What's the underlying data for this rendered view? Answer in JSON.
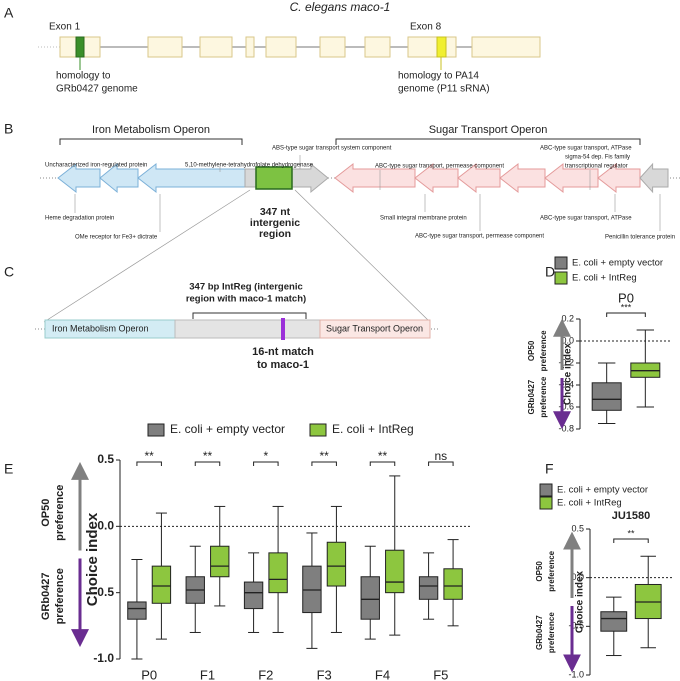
{
  "panel_labels": [
    "A",
    "B",
    "C",
    "D",
    "E",
    "F"
  ],
  "gene": {
    "title": "C. elegans maco-1",
    "exon1": "Exon 1",
    "exon8": "Exon 8",
    "note1": [
      "homology to",
      "GRb0427 genome"
    ],
    "note8": [
      "homology to PA14",
      "genome (P11 sRNA)"
    ]
  },
  "operons": {
    "iron": "Iron Metabolism Operon",
    "sugar": "Sugar Transport Operon",
    "intergenic": [
      "347 nt",
      "intergenic",
      "region"
    ],
    "gene_labels": [
      "Uncharacterized iron-regulated protein",
      "5,10-methylene-tetrahydrofolate dehydrogenase",
      "ABS-type sugar transport system component",
      "ABC-type sugar transport, permease component",
      "ABC-type sugar transport, ATPase",
      "sigma-54 dep. Fis family",
      "transcriptional regulator",
      "Heme degradation protein",
      "OMe receptor for Fe3+ dictrate",
      "Small integral membrane protein",
      "ABC-type sugar transport, permease component",
      "ABC-type sugar transport, ATPase",
      "Penicillin tolerance protein"
    ]
  },
  "intreg": {
    "iron": "Iron Metabolism Operon",
    "sugar": "Sugar Transport Operon",
    "bracket": [
      "347 bp IntReg (intergenic",
      "region with maco-1 match)"
    ],
    "match": [
      "16-nt match",
      "to maco-1"
    ]
  },
  "chart_data": [
    {
      "type": "box",
      "title": "P0",
      "ylabel": "Choice index",
      "up_label": [
        "OP50",
        "preference"
      ],
      "down_label": [
        "GRb0427",
        "preference"
      ],
      "categories": [
        null
      ],
      "ylim": [
        -0.8,
        0.2
      ],
      "yticks": [
        0.2,
        {
          "value": 0,
          "label": "0.0"
        },
        -0.2,
        -0.4,
        -0.6,
        -0.8
      ],
      "significance": [
        "***"
      ],
      "series": [
        {
          "name": "E. coli + empty vector",
          "color": "#7f7f7f",
          "values": [
            {
              "min": -0.75,
              "q1": -0.63,
              "median": -0.53,
              "q3": -0.38,
              "max": -0.2
            }
          ]
        },
        {
          "name": "E. coli + IntReg",
          "color": "#8dc63f",
          "values": [
            {
              "min": -0.6,
              "q1": -0.33,
              "median": -0.27,
              "q3": -0.2,
              "max": 0.1
            }
          ]
        }
      ]
    },
    {
      "type": "box",
      "ylabel": "Choice index",
      "up_label": [
        "OP50",
        "preference"
      ],
      "down_label": [
        "GRb0427",
        "preference"
      ],
      "categories": [
        "P0",
        "F1",
        "F2",
        "F3",
        "F4",
        "F5"
      ],
      "ylim": [
        -1,
        0.5
      ],
      "yticks": [
        0.5,
        {
          "value": 0,
          "label": "0.0"
        },
        -0.5,
        {
          "value": -1,
          "label": "-1.0"
        }
      ],
      "significance": [
        "**",
        "**",
        "*",
        "**",
        "**",
        "ns"
      ],
      "series": [
        {
          "name": "E. coli + empty vector",
          "color": "#7f7f7f",
          "values": [
            {
              "min": -1.0,
              "q1": -0.7,
              "median": -0.62,
              "q3": -0.57,
              "max": -0.25
            },
            {
              "min": -0.8,
              "q1": -0.58,
              "median": -0.48,
              "q3": -0.38,
              "max": -0.15
            },
            {
              "min": -0.8,
              "q1": -0.62,
              "median": -0.5,
              "q3": -0.42,
              "max": -0.2
            },
            {
              "min": -0.92,
              "q1": -0.65,
              "median": -0.48,
              "q3": -0.3,
              "max": -0.05
            },
            {
              "min": -0.85,
              "q1": -0.7,
              "median": -0.55,
              "q3": -0.38,
              "max": -0.15
            },
            {
              "min": -0.7,
              "q1": -0.55,
              "median": -0.45,
              "q3": -0.38,
              "max": -0.2
            }
          ]
        },
        {
          "name": "E. coli + IntReg",
          "color": "#8dc63f",
          "values": [
            {
              "min": -0.85,
              "q1": -0.58,
              "median": -0.45,
              "q3": -0.3,
              "max": 0.1
            },
            {
              "min": -0.6,
              "q1": -0.38,
              "median": -0.3,
              "q3": -0.15,
              "max": 0.15
            },
            {
              "min": -0.8,
              "q1": -0.5,
              "median": -0.4,
              "q3": -0.2,
              "max": 0.15
            },
            {
              "min": -0.8,
              "q1": -0.45,
              "median": -0.3,
              "q3": -0.12,
              "max": 0.15
            },
            {
              "min": -0.82,
              "q1": -0.5,
              "median": -0.42,
              "q3": -0.18,
              "max": 0.38
            },
            {
              "min": -0.75,
              "q1": -0.55,
              "median": -0.45,
              "q3": -0.32,
              "max": -0.1
            }
          ]
        }
      ]
    },
    {
      "type": "box",
      "title": "JU1580",
      "title_color": "#e8962e",
      "ylabel": "Choice index",
      "up_label": [
        "OP50",
        "preference"
      ],
      "down_label": [
        "GRb0427",
        "preference"
      ],
      "categories": [
        null
      ],
      "ylim": [
        -1,
        0.5
      ],
      "yticks": [
        0.5,
        {
          "value": 0,
          "label": "0.0"
        },
        -0.5,
        {
          "value": -1,
          "label": "-1.0"
        }
      ],
      "significance": [
        "**"
      ],
      "series": [
        {
          "name": "E. coli + empty vector",
          "color": "#7f7f7f",
          "values": [
            {
              "min": -0.8,
              "q1": -0.55,
              "median": -0.42,
              "q3": -0.35,
              "max": -0.2
            }
          ]
        },
        {
          "name": "E. coli + IntReg",
          "color": "#8dc63f",
          "values": [
            {
              "min": -0.72,
              "q1": -0.42,
              "median": -0.25,
              "q3": -0.07,
              "max": 0.22
            }
          ]
        }
      ]
    }
  ]
}
